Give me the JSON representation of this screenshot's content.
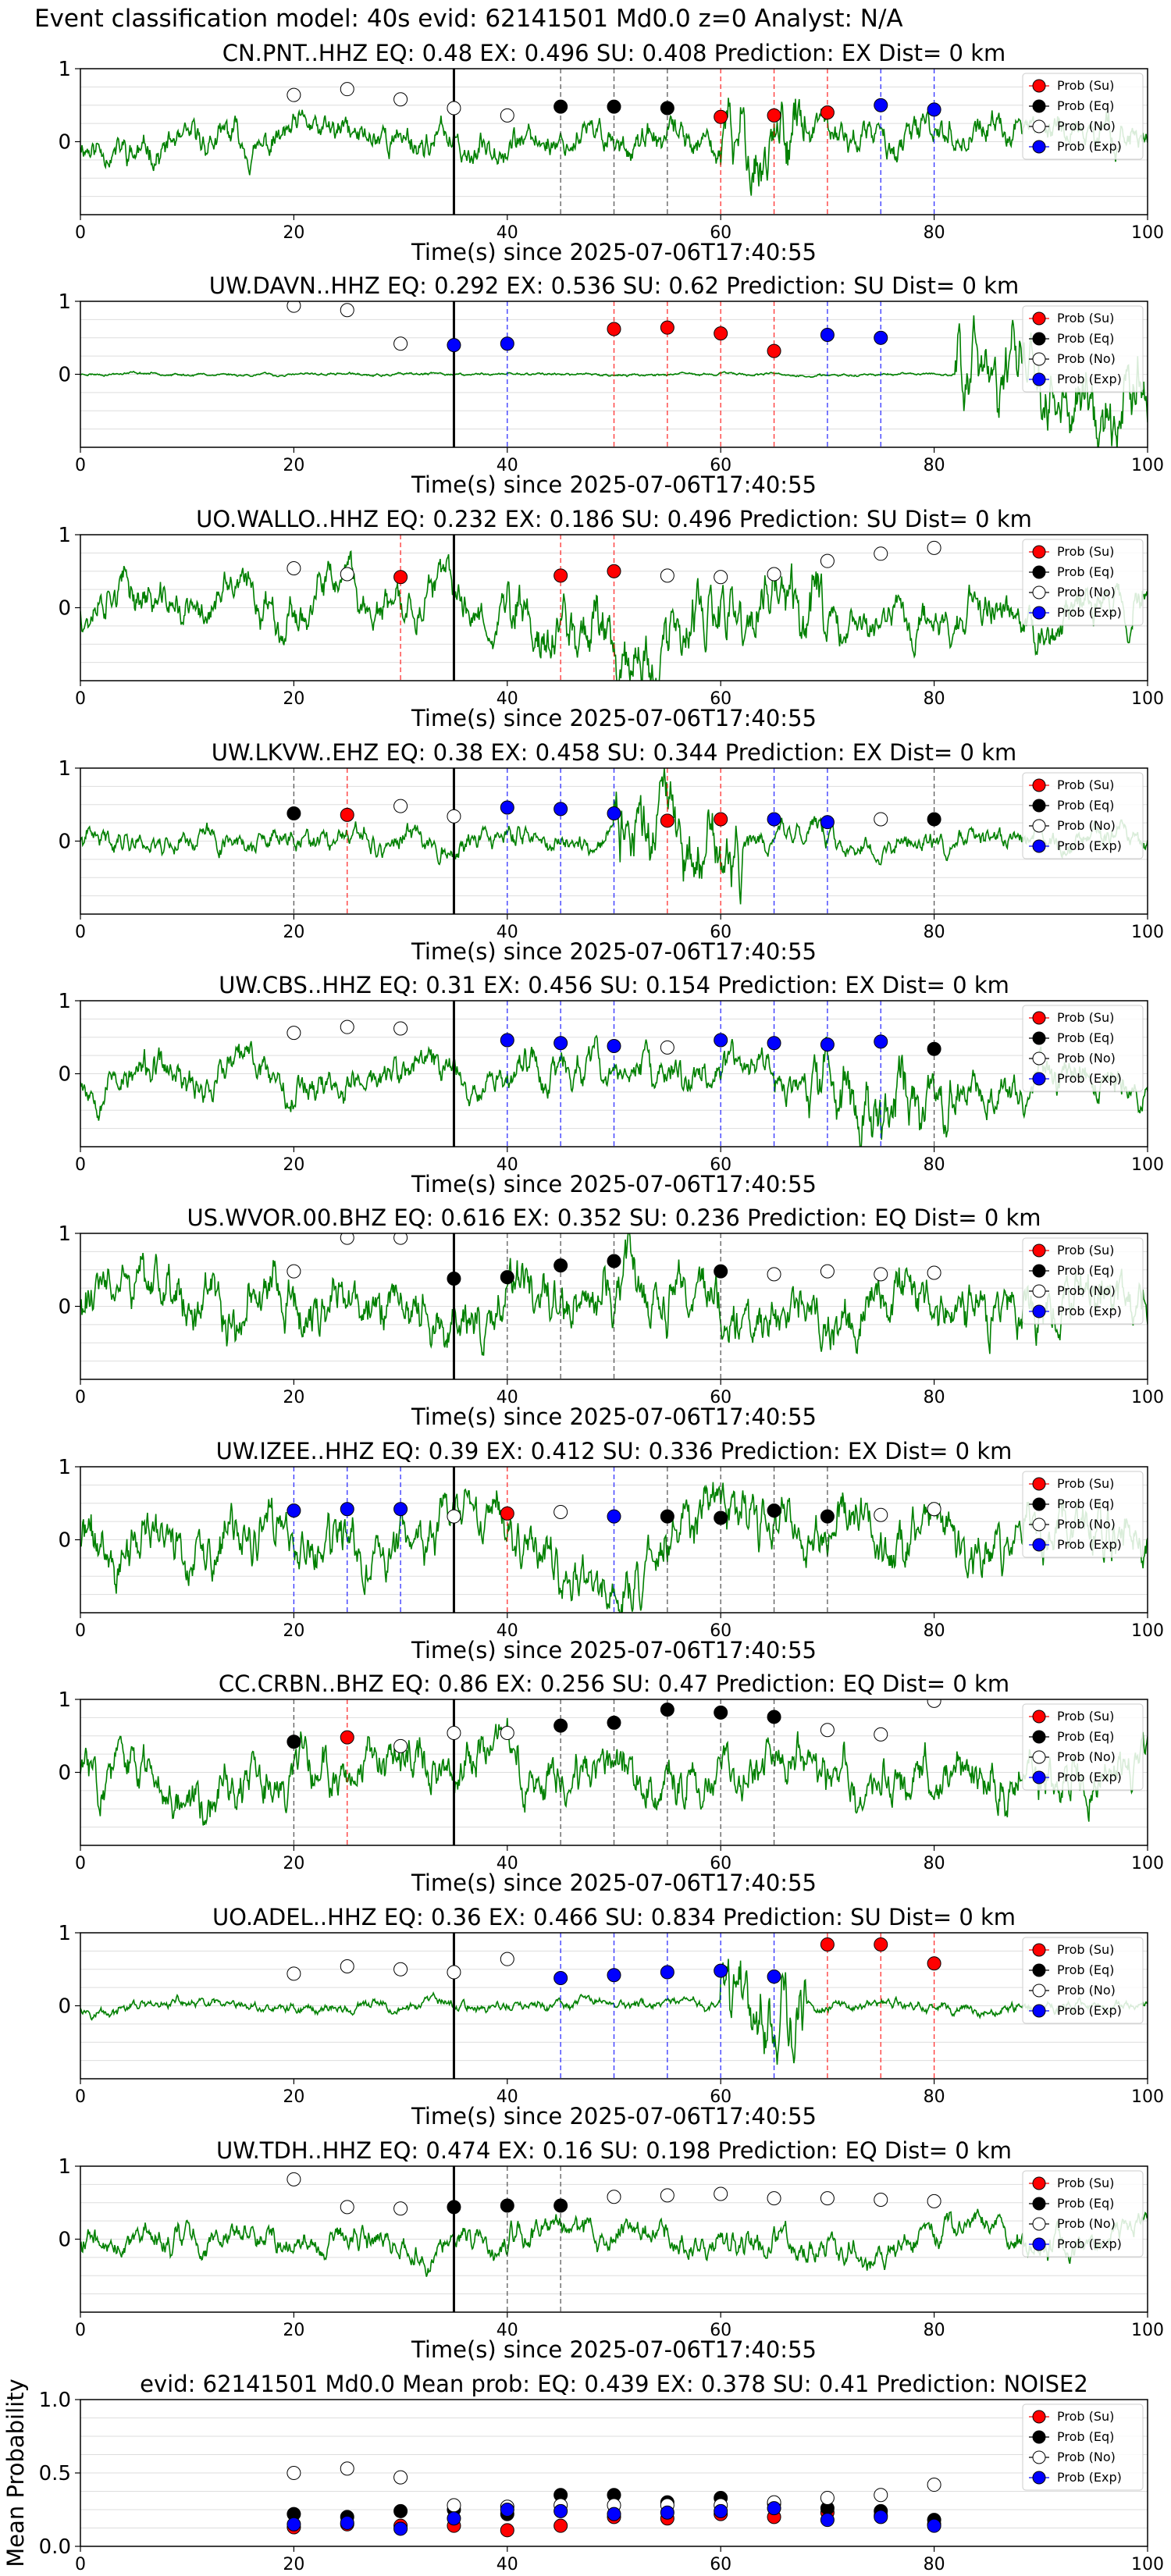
{
  "sup_title": "Event classification model: 40s evid: 62141501 Md0.0 z=0 Analyst: N/A",
  "colors": {
    "waveform": "#008000",
    "su": "#ff0000",
    "eq": "#000000",
    "no": "#ffffff",
    "exp": "#0000ff",
    "pick_line": "#000000",
    "grid": "#dddddd"
  },
  "legend_labels": [
    "Prob (Su)",
    "Prob (Eq)",
    "Prob (No)",
    "Prob (Exp)"
  ],
  "chart_data": [
    {
      "type": "scatter",
      "title": "CN.PNT..HHZ   EQ: 0.48   EX: 0.496   SU: 0.408   Prediction: EX    Dist= 0 km",
      "xlabel": "Time(s) since 2025-07-06T17:40:55",
      "ylabel": "",
      "xlim": [
        0,
        100
      ],
      "ylim": [
        -1,
        1
      ],
      "xticks": [
        0,
        20,
        40,
        60,
        80,
        100
      ],
      "yticks": [
        0,
        1
      ],
      "legend": "top-right",
      "p_pick": 35,
      "amp": 0.35,
      "burst": [
        60,
        68
      ],
      "burst_amp": 0.85,
      "seed": 11,
      "windows": [
        {
          "t": 20,
          "cls": "no",
          "p": 0.64
        },
        {
          "t": 25,
          "cls": "no",
          "p": 0.72
        },
        {
          "t": 30,
          "cls": "no",
          "p": 0.58
        },
        {
          "t": 35,
          "cls": "no",
          "p": 0.46
        },
        {
          "t": 40,
          "cls": "no",
          "p": 0.36
        },
        {
          "t": 45,
          "cls": "eq",
          "p": 0.48
        },
        {
          "t": 50,
          "cls": "eq",
          "p": 0.48
        },
        {
          "t": 55,
          "cls": "eq",
          "p": 0.46
        },
        {
          "t": 60,
          "cls": "su",
          "p": 0.34
        },
        {
          "t": 65,
          "cls": "su",
          "p": 0.36
        },
        {
          "t": 70,
          "cls": "su",
          "p": 0.4
        },
        {
          "t": 75,
          "cls": "exp",
          "p": 0.5
        },
        {
          "t": 80,
          "cls": "exp",
          "p": 0.44
        }
      ]
    },
    {
      "type": "scatter",
      "title": "UW.DAVN..HHZ   EQ: 0.292  EX: 0.536  SU: 0.62   Prediction: SU    Dist= 0 km",
      "xlabel": "Time(s) since 2025-07-06T17:40:55",
      "ylabel": "",
      "xlim": [
        0,
        100
      ],
      "ylim": [
        -1,
        1
      ],
      "xticks": [
        0,
        20,
        40,
        60,
        80,
        100
      ],
      "yticks": [
        0,
        1
      ],
      "legend": "top-right",
      "p_pick": 35,
      "amp": 0.03,
      "burst": [
        82,
        100
      ],
      "burst_amp": 0.9,
      "seed": 23,
      "windows": [
        {
          "t": 20,
          "cls": "no",
          "p": 0.94
        },
        {
          "t": 25,
          "cls": "no",
          "p": 0.88
        },
        {
          "t": 30,
          "cls": "no",
          "p": 0.42
        },
        {
          "t": 35,
          "cls": "exp",
          "p": 0.4
        },
        {
          "t": 40,
          "cls": "exp",
          "p": 0.42
        },
        {
          "t": 50,
          "cls": "su",
          "p": 0.62
        },
        {
          "t": 55,
          "cls": "su",
          "p": 0.64
        },
        {
          "t": 60,
          "cls": "su",
          "p": 0.56
        },
        {
          "t": 65,
          "cls": "su",
          "p": 0.32
        },
        {
          "t": 70,
          "cls": "exp",
          "p": 0.54
        },
        {
          "t": 75,
          "cls": "exp",
          "p": 0.5
        }
      ]
    },
    {
      "type": "scatter",
      "title": "UO.WALLO..HHZ   EQ: 0.232  EX: 0.186  SU: 0.496   Prediction: SU    Dist= 0 km",
      "xlabel": "Time(s) since 2025-07-06T17:40:55",
      "ylabel": "",
      "xlim": [
        0,
        100
      ],
      "ylim": [
        -1,
        1
      ],
      "xticks": [
        0,
        20,
        40,
        60,
        80,
        100
      ],
      "yticks": [
        0,
        1
      ],
      "legend": "top-right",
      "p_pick": 35,
      "amp": 0.45,
      "burst": [
        40,
        70
      ],
      "burst_amp": 0.75,
      "seed": 37,
      "windows": [
        {
          "t": 20,
          "cls": "no",
          "p": 0.54
        },
        {
          "t": 25,
          "cls": "no",
          "p": 0.46
        },
        {
          "t": 30,
          "cls": "su",
          "p": 0.42
        },
        {
          "t": 45,
          "cls": "su",
          "p": 0.44
        },
        {
          "t": 50,
          "cls": "su",
          "p": 0.5
        },
        {
          "t": 55,
          "cls": "no",
          "p": 0.44
        },
        {
          "t": 60,
          "cls": "no",
          "p": 0.42
        },
        {
          "t": 65,
          "cls": "no",
          "p": 0.46
        },
        {
          "t": 70,
          "cls": "no",
          "p": 0.64
        },
        {
          "t": 75,
          "cls": "no",
          "p": 0.74
        },
        {
          "t": 80,
          "cls": "no",
          "p": 0.82
        }
      ]
    },
    {
      "type": "scatter",
      "title": "UW.LKVW..EHZ   EQ: 0.38  EX: 0.458  SU: 0.344   Prediction: EX    Dist= 0 km",
      "xlabel": "Time(s) since 2025-07-06T17:40:55",
      "ylabel": "",
      "xlim": [
        0,
        100
      ],
      "ylim": [
        -1,
        1
      ],
      "xticks": [
        0,
        20,
        40,
        60,
        80,
        100
      ],
      "yticks": [
        0,
        1
      ],
      "legend": "top-right",
      "p_pick": 35,
      "amp": 0.25,
      "burst": [
        50,
        62
      ],
      "burst_amp": 0.8,
      "seed": 41,
      "windows": [
        {
          "t": 20,
          "cls": "eq",
          "p": 0.38
        },
        {
          "t": 25,
          "cls": "su",
          "p": 0.36
        },
        {
          "t": 30,
          "cls": "no",
          "p": 0.48
        },
        {
          "t": 35,
          "cls": "no",
          "p": 0.34
        },
        {
          "t": 40,
          "cls": "exp",
          "p": 0.46
        },
        {
          "t": 45,
          "cls": "exp",
          "p": 0.44
        },
        {
          "t": 50,
          "cls": "exp",
          "p": 0.38
        },
        {
          "t": 55,
          "cls": "su",
          "p": 0.28
        },
        {
          "t": 60,
          "cls": "su",
          "p": 0.3
        },
        {
          "t": 65,
          "cls": "exp",
          "p": 0.3
        },
        {
          "t": 70,
          "cls": "exp",
          "p": 0.26
        },
        {
          "t": 75,
          "cls": "no",
          "p": 0.3
        },
        {
          "t": 80,
          "cls": "eq",
          "p": 0.3
        }
      ]
    },
    {
      "type": "scatter",
      "title": "UW.CBS..HHZ   EQ: 0.31  EX: 0.456  SU: 0.154   Prediction: EX    Dist= 0 km",
      "xlabel": "Time(s) since 2025-07-06T17:40:55",
      "ylabel": "",
      "xlim": [
        0,
        100
      ],
      "ylim": [
        -1,
        1
      ],
      "xticks": [
        0,
        20,
        40,
        60,
        80,
        100
      ],
      "yticks": [
        0,
        1
      ],
      "legend": "top-right",
      "p_pick": 35,
      "amp": 0.4,
      "burst": [
        68,
        82
      ],
      "burst_amp": 0.75,
      "seed": 53,
      "windows": [
        {
          "t": 20,
          "cls": "no",
          "p": 0.56
        },
        {
          "t": 25,
          "cls": "no",
          "p": 0.64
        },
        {
          "t": 30,
          "cls": "no",
          "p": 0.62
        },
        {
          "t": 40,
          "cls": "exp",
          "p": 0.46
        },
        {
          "t": 45,
          "cls": "exp",
          "p": 0.42
        },
        {
          "t": 50,
          "cls": "exp",
          "p": 0.38
        },
        {
          "t": 55,
          "cls": "no",
          "p": 0.36
        },
        {
          "t": 60,
          "cls": "exp",
          "p": 0.46
        },
        {
          "t": 65,
          "cls": "exp",
          "p": 0.42
        },
        {
          "t": 70,
          "cls": "exp",
          "p": 0.4
        },
        {
          "t": 75,
          "cls": "exp",
          "p": 0.44
        },
        {
          "t": 80,
          "cls": "eq",
          "p": 0.34
        }
      ]
    },
    {
      "type": "scatter",
      "title": "US.WVOR.00.BHZ   EQ: 0.616  EX: 0.352  SU: 0.236   Prediction: EQ    Dist= 0 km",
      "xlabel": "Time(s) since 2025-07-06T17:40:55",
      "ylabel": "",
      "xlim": [
        0,
        100
      ],
      "ylim": [
        -1,
        1
      ],
      "xticks": [
        0,
        20,
        40,
        60,
        80,
        100
      ],
      "yticks": [
        0,
        1
      ],
      "legend": "top-right",
      "p_pick": 35,
      "amp": 0.6,
      "burst": [
        0,
        0
      ],
      "burst_amp": 0,
      "seed": 61,
      "windows": [
        {
          "t": 20,
          "cls": "no",
          "p": 0.48
        },
        {
          "t": 25,
          "cls": "no",
          "p": 0.94
        },
        {
          "t": 30,
          "cls": "no",
          "p": 0.94
        },
        {
          "t": 35,
          "cls": "eq",
          "p": 0.38
        },
        {
          "t": 40,
          "cls": "eq",
          "p": 0.4
        },
        {
          "t": 45,
          "cls": "eq",
          "p": 0.56
        },
        {
          "t": 50,
          "cls": "eq",
          "p": 0.62
        },
        {
          "t": 60,
          "cls": "eq",
          "p": 0.48
        },
        {
          "t": 65,
          "cls": "no",
          "p": 0.44
        },
        {
          "t": 70,
          "cls": "no",
          "p": 0.48
        },
        {
          "t": 75,
          "cls": "no",
          "p": 0.44
        },
        {
          "t": 80,
          "cls": "no",
          "p": 0.46
        }
      ]
    },
    {
      "type": "scatter",
      "title": "UW.IZEE..HHZ   EQ: 0.39  EX: 0.412  SU: 0.336   Prediction: EX    Dist= 0 km",
      "xlabel": "Time(s) since 2025-07-06T17:40:55",
      "ylabel": "",
      "xlim": [
        0,
        100
      ],
      "ylim": [
        -1,
        1
      ],
      "xticks": [
        0,
        20,
        40,
        60,
        80,
        100
      ],
      "yticks": [
        0,
        1
      ],
      "legend": "top-right",
      "p_pick": 35,
      "amp": 0.6,
      "burst": [
        0,
        0
      ],
      "burst_amp": 0,
      "seed": 71,
      "windows": [
        {
          "t": 20,
          "cls": "exp",
          "p": 0.4
        },
        {
          "t": 25,
          "cls": "exp",
          "p": 0.42
        },
        {
          "t": 30,
          "cls": "exp",
          "p": 0.42
        },
        {
          "t": 35,
          "cls": "no",
          "p": 0.32
        },
        {
          "t": 40,
          "cls": "su",
          "p": 0.36
        },
        {
          "t": 45,
          "cls": "no",
          "p": 0.38
        },
        {
          "t": 50,
          "cls": "exp",
          "p": 0.32
        },
        {
          "t": 55,
          "cls": "eq",
          "p": 0.32
        },
        {
          "t": 60,
          "cls": "eq",
          "p": 0.3
        },
        {
          "t": 65,
          "cls": "eq",
          "p": 0.4
        },
        {
          "t": 70,
          "cls": "eq",
          "p": 0.32
        },
        {
          "t": 75,
          "cls": "no",
          "p": 0.34
        },
        {
          "t": 80,
          "cls": "no",
          "p": 0.42
        }
      ]
    },
    {
      "type": "scatter",
      "title": "CC.CRBN..BHZ   EQ: 0.86  EX: 0.256  SU: 0.47   Prediction: EQ    Dist= 0 km",
      "xlabel": "Time(s) since 2025-07-06T17:40:55",
      "ylabel": "",
      "xlim": [
        0,
        100
      ],
      "ylim": [
        -1,
        1
      ],
      "xticks": [
        0,
        20,
        40,
        60,
        80,
        100
      ],
      "yticks": [
        0,
        1
      ],
      "legend": "top-right",
      "p_pick": 35,
      "amp": 0.55,
      "burst": [
        0,
        0
      ],
      "burst_amp": 0,
      "seed": 83,
      "windows": [
        {
          "t": 20,
          "cls": "eq",
          "p": 0.42
        },
        {
          "t": 25,
          "cls": "su",
          "p": 0.48
        },
        {
          "t": 30,
          "cls": "no",
          "p": 0.36
        },
        {
          "t": 35,
          "cls": "no",
          "p": 0.54
        },
        {
          "t": 40,
          "cls": "no",
          "p": 0.54
        },
        {
          "t": 45,
          "cls": "eq",
          "p": 0.64
        },
        {
          "t": 50,
          "cls": "eq",
          "p": 0.68
        },
        {
          "t": 55,
          "cls": "eq",
          "p": 0.86
        },
        {
          "t": 60,
          "cls": "eq",
          "p": 0.82
        },
        {
          "t": 65,
          "cls": "eq",
          "p": 0.76
        },
        {
          "t": 70,
          "cls": "no",
          "p": 0.58
        },
        {
          "t": 75,
          "cls": "no",
          "p": 0.52
        },
        {
          "t": 80,
          "cls": "no",
          "p": 0.98
        }
      ]
    },
    {
      "type": "scatter",
      "title": "UO.ADEL..HHZ   EQ: 0.36  EX: 0.466  SU: 0.834   Prediction: SU    Dist= 0 km",
      "xlabel": "Time(s) since 2025-07-06T17:40:55",
      "ylabel": "",
      "xlim": [
        0,
        100
      ],
      "ylim": [
        -1,
        1
      ],
      "xticks": [
        0,
        20,
        40,
        60,
        80,
        100
      ],
      "yticks": [
        0,
        1
      ],
      "legend": "top-right",
      "p_pick": 35,
      "amp": 0.12,
      "burst": [
        60,
        68
      ],
      "burst_amp": 0.9,
      "seed": 97,
      "windows": [
        {
          "t": 20,
          "cls": "no",
          "p": 0.44
        },
        {
          "t": 25,
          "cls": "no",
          "p": 0.54
        },
        {
          "t": 30,
          "cls": "no",
          "p": 0.5
        },
        {
          "t": 35,
          "cls": "no",
          "p": 0.46
        },
        {
          "t": 40,
          "cls": "no",
          "p": 0.64
        },
        {
          "t": 45,
          "cls": "exp",
          "p": 0.38
        },
        {
          "t": 50,
          "cls": "exp",
          "p": 0.42
        },
        {
          "t": 55,
          "cls": "exp",
          "p": 0.46
        },
        {
          "t": 60,
          "cls": "exp",
          "p": 0.48
        },
        {
          "t": 65,
          "cls": "exp",
          "p": 0.4
        },
        {
          "t": 70,
          "cls": "su",
          "p": 0.84
        },
        {
          "t": 75,
          "cls": "su",
          "p": 0.84
        },
        {
          "t": 80,
          "cls": "su",
          "p": 0.58
        }
      ]
    },
    {
      "type": "scatter",
      "title": "UW.TDH..HHZ   EQ: 0.474  EX: 0.16  SU: 0.198   Prediction: EQ    Dist= 0 km",
      "xlabel": "Time(s) since 2025-07-06T17:40:55",
      "ylabel": "",
      "xlim": [
        0,
        100
      ],
      "ylim": [
        -1,
        1
      ],
      "xticks": [
        0,
        20,
        40,
        60,
        80,
        100
      ],
      "yticks": [
        0,
        1
      ],
      "legend": "top-right",
      "p_pick": 35,
      "amp": 0.3,
      "burst": [
        0,
        0
      ],
      "burst_amp": 0,
      "seed": 109,
      "windows": [
        {
          "t": 20,
          "cls": "no",
          "p": 0.82
        },
        {
          "t": 25,
          "cls": "no",
          "p": 0.44
        },
        {
          "t": 30,
          "cls": "no",
          "p": 0.42
        },
        {
          "t": 35,
          "cls": "eq",
          "p": 0.44
        },
        {
          "t": 40,
          "cls": "eq",
          "p": 0.46
        },
        {
          "t": 45,
          "cls": "eq",
          "p": 0.46
        },
        {
          "t": 50,
          "cls": "no",
          "p": 0.58
        },
        {
          "t": 55,
          "cls": "no",
          "p": 0.6
        },
        {
          "t": 60,
          "cls": "no",
          "p": 0.62
        },
        {
          "t": 65,
          "cls": "no",
          "p": 0.56
        },
        {
          "t": 70,
          "cls": "no",
          "p": 0.56
        },
        {
          "t": 75,
          "cls": "no",
          "p": 0.54
        },
        {
          "t": 80,
          "cls": "no",
          "p": 0.52
        }
      ]
    },
    {
      "type": "scatter",
      "title": "evid: 62141501  Md0.0   Mean prob:   EQ: 0.439  EX: 0.378  SU: 0.41   Prediction: NOISE2",
      "xlabel": "",
      "ylabel": "Mean Probability",
      "xlim": [
        0,
        100
      ],
      "ylim": [
        0,
        1
      ],
      "xticks": [
        0,
        20,
        40,
        60,
        80,
        100
      ],
      "yticks": [
        0,
        0.5,
        1
      ],
      "ytick_labels": [
        "0.0",
        "0.5",
        "1.0"
      ],
      "legend": "top-right",
      "x": [
        20,
        25,
        30,
        35,
        40,
        45,
        50,
        55,
        60,
        65,
        70,
        75,
        80
      ],
      "series": [
        {
          "name": "Prob (Su)",
          "cls": "su",
          "values": [
            0.13,
            0.15,
            0.14,
            0.14,
            0.11,
            0.14,
            0.2,
            0.19,
            0.22,
            0.2,
            0.23,
            0.21,
            0.15
          ]
        },
        {
          "name": "Prob (Eq)",
          "cls": "eq",
          "values": [
            0.22,
            0.2,
            0.24,
            0.25,
            0.22,
            0.35,
            0.35,
            0.3,
            0.33,
            0.29,
            0.26,
            0.24,
            0.18
          ]
        },
        {
          "name": "Prob (No)",
          "cls": "no",
          "values": [
            0.5,
            0.53,
            0.47,
            0.28,
            0.27,
            0.28,
            0.28,
            0.28,
            0.28,
            0.3,
            0.33,
            0.35,
            0.42
          ]
        },
        {
          "name": "Prob (Exp)",
          "cls": "exp",
          "values": [
            0.15,
            0.16,
            0.12,
            0.19,
            0.25,
            0.24,
            0.22,
            0.23,
            0.24,
            0.26,
            0.18,
            0.2,
            0.14
          ]
        }
      ]
    }
  ]
}
